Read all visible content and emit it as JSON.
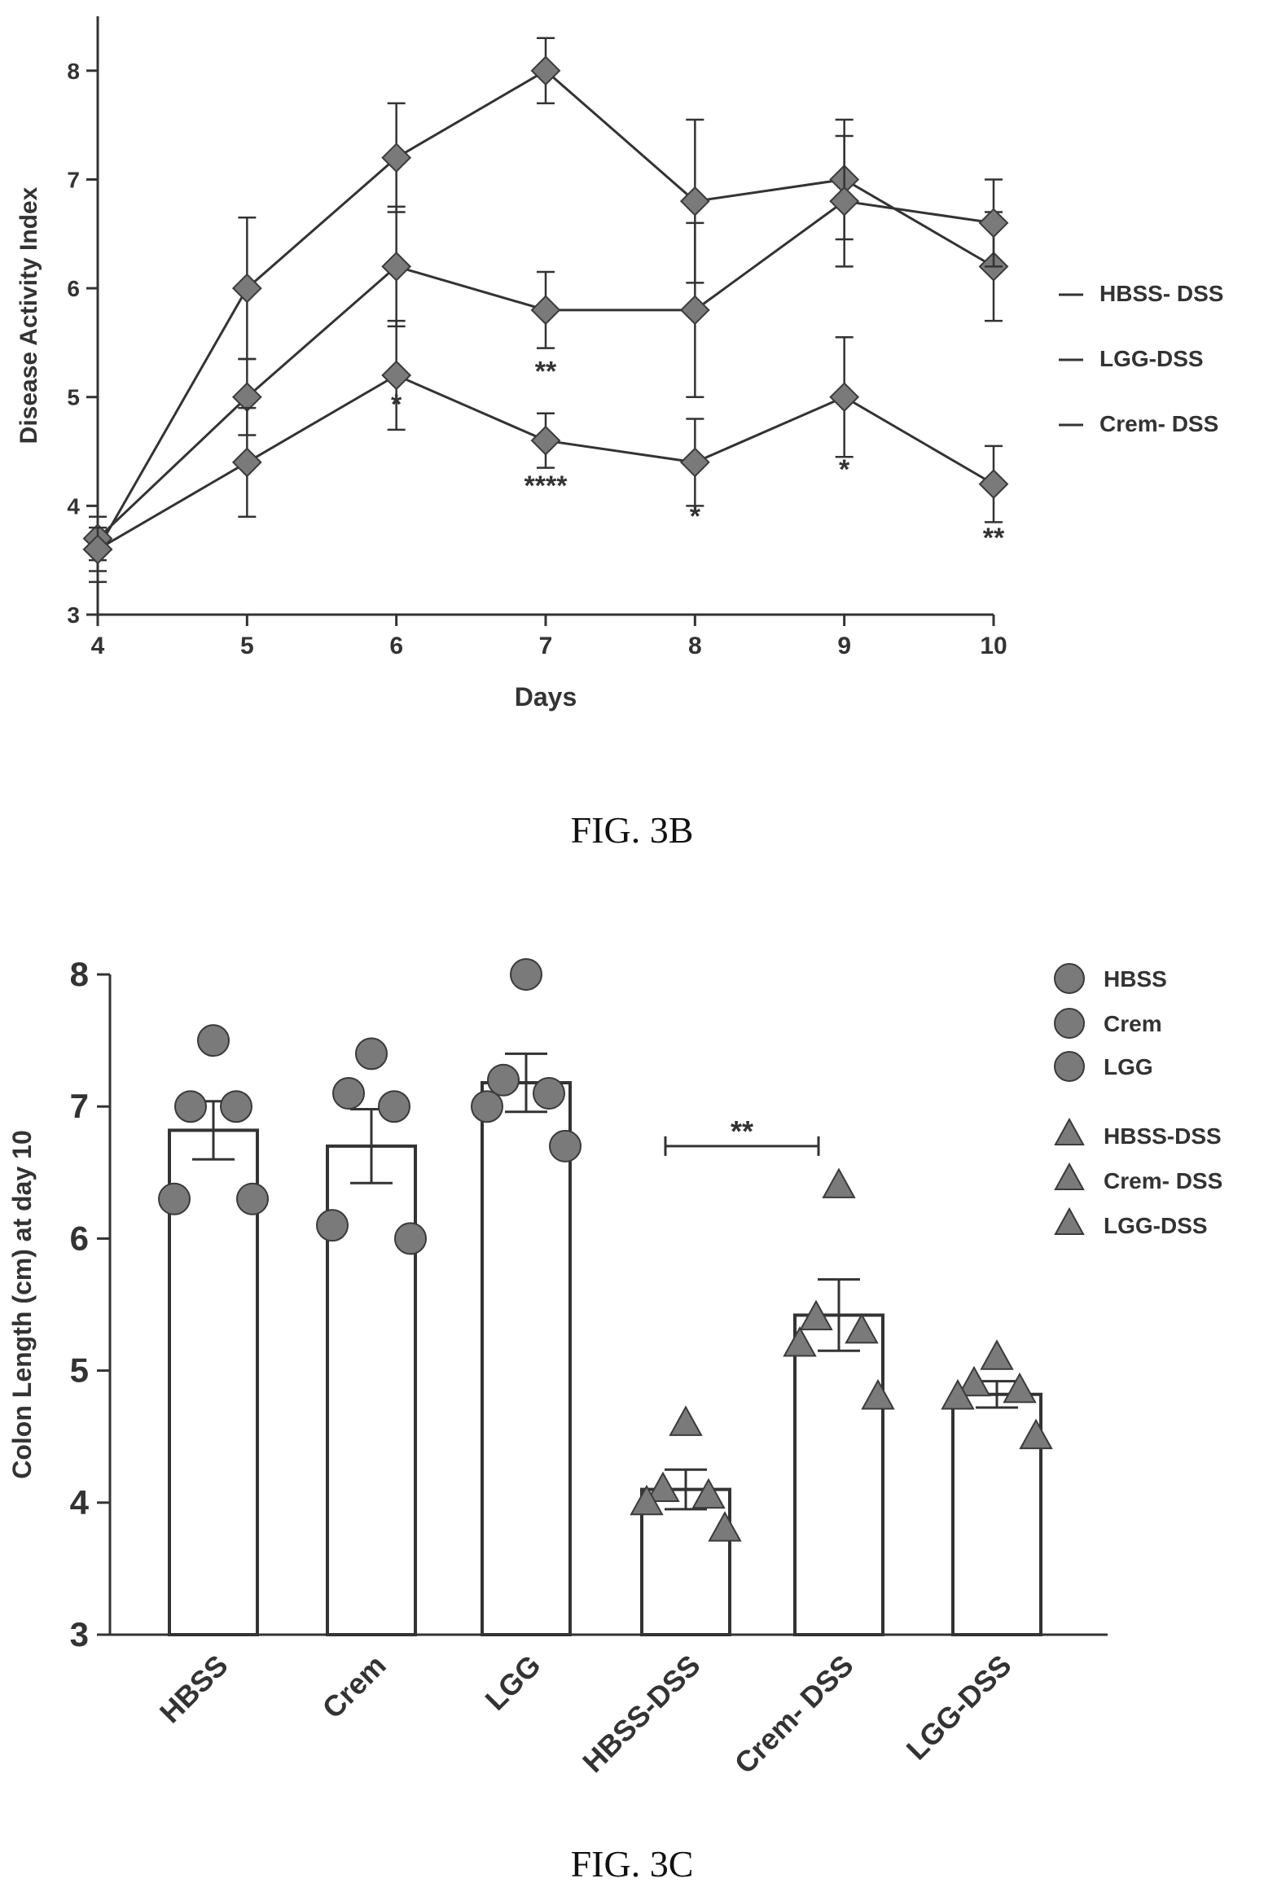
{
  "colors": {
    "ink": "#333333",
    "marker": "#7a7a7a",
    "marker_edge": "#3a3a3a",
    "bar_fill": "#ffffff"
  },
  "chart_data": [
    {
      "type": "line",
      "caption": "FIG. 3B",
      "title": "",
      "xlabel": "Days",
      "ylabel": "Disease Activity Index",
      "x": [
        4,
        5,
        6,
        7,
        8,
        9,
        10
      ],
      "x_tick_labels": [
        "4",
        "5",
        "6",
        "7",
        "8",
        "9",
        "10"
      ],
      "xlim": [
        4,
        10
      ],
      "ylim": [
        3,
        8.5
      ],
      "y_ticks": [
        3,
        4,
        5,
        6,
        7,
        8
      ],
      "grid": false,
      "legend_position": "right",
      "series": [
        {
          "name": "HBSS- DSS",
          "values": [
            3.6,
            6.0,
            7.2,
            8.0,
            6.8,
            7.0,
            6.2
          ],
          "err": [
            0.3,
            0.65,
            0.5,
            0.3,
            0.75,
            0.55,
            0.5
          ]
        },
        {
          "name": "LGG-DSS",
          "values": [
            3.7,
            5.0,
            6.2,
            5.8,
            5.8,
            6.8,
            6.6
          ],
          "err": [
            0.2,
            0.35,
            0.55,
            0.35,
            0.8,
            0.6,
            0.4
          ]
        },
        {
          "name": "Crem- DSS",
          "values": [
            3.6,
            4.4,
            5.2,
            4.6,
            4.4,
            5.0,
            4.2
          ],
          "err": [
            0.2,
            0.5,
            0.5,
            0.25,
            0.4,
            0.55,
            0.35
          ]
        }
      ],
      "annotations": [
        {
          "x": 6,
          "y": 4.85,
          "text": "*"
        },
        {
          "x": 7,
          "y": 5.15,
          "text": "**"
        },
        {
          "x": 7,
          "y": 4.1,
          "text": "****"
        },
        {
          "x": 8,
          "y": 3.82,
          "text": "*"
        },
        {
          "x": 9,
          "y": 4.25,
          "text": "*"
        },
        {
          "x": 10,
          "y": 3.62,
          "text": "**"
        }
      ]
    },
    {
      "type": "bar",
      "caption": "FIG. 3C",
      "title": "",
      "xlabel": "",
      "ylabel": "Colon Length (cm) at day 10",
      "categories": [
        "HBSS",
        "Crem",
        "LGG",
        "HBSS-DSS",
        "Crem- DSS",
        "LGG-DSS"
      ],
      "values": [
        6.82,
        6.7,
        7.18,
        4.1,
        5.42,
        4.82
      ],
      "err": [
        0.22,
        0.28,
        0.22,
        0.15,
        0.27,
        0.1
      ],
      "ylim": [
        3,
        8
      ],
      "y_ticks": [
        3,
        4,
        5,
        6,
        7,
        8
      ],
      "grid": false,
      "legend_position": "top-right",
      "legend": [
        {
          "name": "HBSS",
          "marker": "circle"
        },
        {
          "name": "Crem",
          "marker": "circle"
        },
        {
          "name": "LGG",
          "marker": "circle"
        },
        {
          "name": "HBSS-DSS",
          "marker": "triangle"
        },
        {
          "name": "Crem- DSS",
          "marker": "triangle"
        },
        {
          "name": "LGG-DSS",
          "marker": "triangle"
        }
      ],
      "points": [
        {
          "category": "HBSS",
          "marker": "circle",
          "values": [
            7.5,
            7.0,
            7.0,
            6.3,
            6.3
          ]
        },
        {
          "category": "Crem",
          "marker": "circle",
          "values": [
            7.4,
            7.1,
            7.0,
            6.1,
            6.0
          ]
        },
        {
          "category": "LGG",
          "marker": "circle",
          "values": [
            8.0,
            7.2,
            7.1,
            7.0,
            6.7
          ]
        },
        {
          "category": "HBSS-DSS",
          "marker": "triangle",
          "values": [
            4.6,
            4.1,
            4.05,
            4.0,
            3.8
          ]
        },
        {
          "category": "Crem- DSS",
          "marker": "triangle",
          "values": [
            6.4,
            5.4,
            5.3,
            5.2,
            4.8
          ]
        },
        {
          "category": "LGG-DSS",
          "marker": "triangle",
          "values": [
            5.1,
            4.9,
            4.85,
            4.8,
            4.5
          ]
        }
      ],
      "significance": {
        "from": "HBSS-DSS",
        "to": "Crem- DSS",
        "y": 6.7,
        "text": "**"
      }
    }
  ]
}
